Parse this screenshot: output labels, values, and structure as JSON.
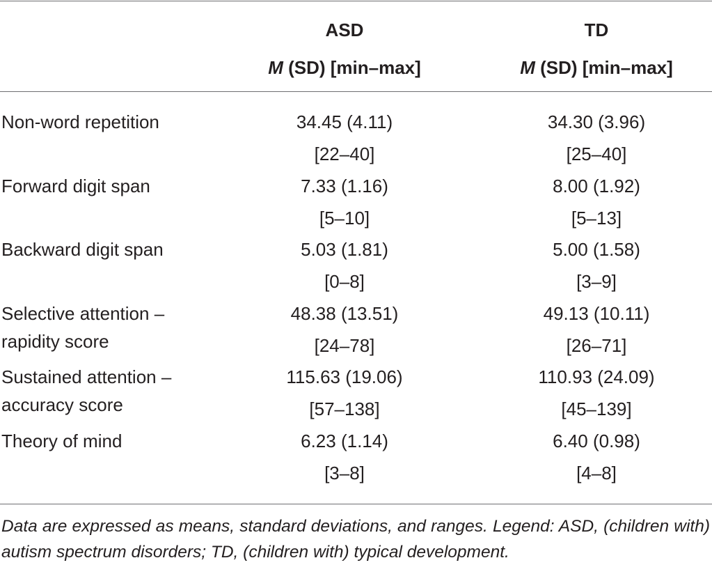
{
  "header": {
    "asd": {
      "title": "ASD",
      "stat_italic": "M",
      "stat_rest": " (SD) [min–max]"
    },
    "td": {
      "title": "TD",
      "stat_italic": "M",
      "stat_rest": " (SD) [min–max]"
    }
  },
  "rows": [
    {
      "label": [
        "Non-word repetition"
      ],
      "asd_mean": "34.45 (4.11)",
      "asd_range": "[22–40]",
      "td_mean": "34.30 (3.96)",
      "td_range": "[25–40]"
    },
    {
      "label": [
        "Forward digit span"
      ],
      "asd_mean": "7.33 (1.16)",
      "asd_range": "[5–10]",
      "td_mean": "8.00 (1.92)",
      "td_range": "[5–13]"
    },
    {
      "label": [
        "Backward digit span"
      ],
      "asd_mean": "5.03 (1.81)",
      "asd_range": "[0–8]",
      "td_mean": "5.00 (1.58)",
      "td_range": "[3–9]"
    },
    {
      "label": [
        "Selective attention –",
        "rapidity score"
      ],
      "asd_mean": "48.38 (13.51)",
      "asd_range": "[24–78]",
      "td_mean": "49.13 (10.11)",
      "td_range": "[26–71]"
    },
    {
      "label": [
        "Sustained attention –",
        "accuracy score"
      ],
      "asd_mean": "115.63 (19.06)",
      "asd_range": "[57–138]",
      "td_mean": "110.93 (24.09)",
      "td_range": "[45–139]"
    },
    {
      "label": [
        "Theory of mind"
      ],
      "asd_mean": "6.23 (1.14)",
      "asd_range": "[3–8]",
      "td_mean": "6.40 (0.98)",
      "td_range": "[4–8]"
    }
  ],
  "footnote": "Data are expressed as means, standard deviations, and ranges. Legend: ASD, (children with) autism spectrum disorders; TD, (children with) typical development."
}
